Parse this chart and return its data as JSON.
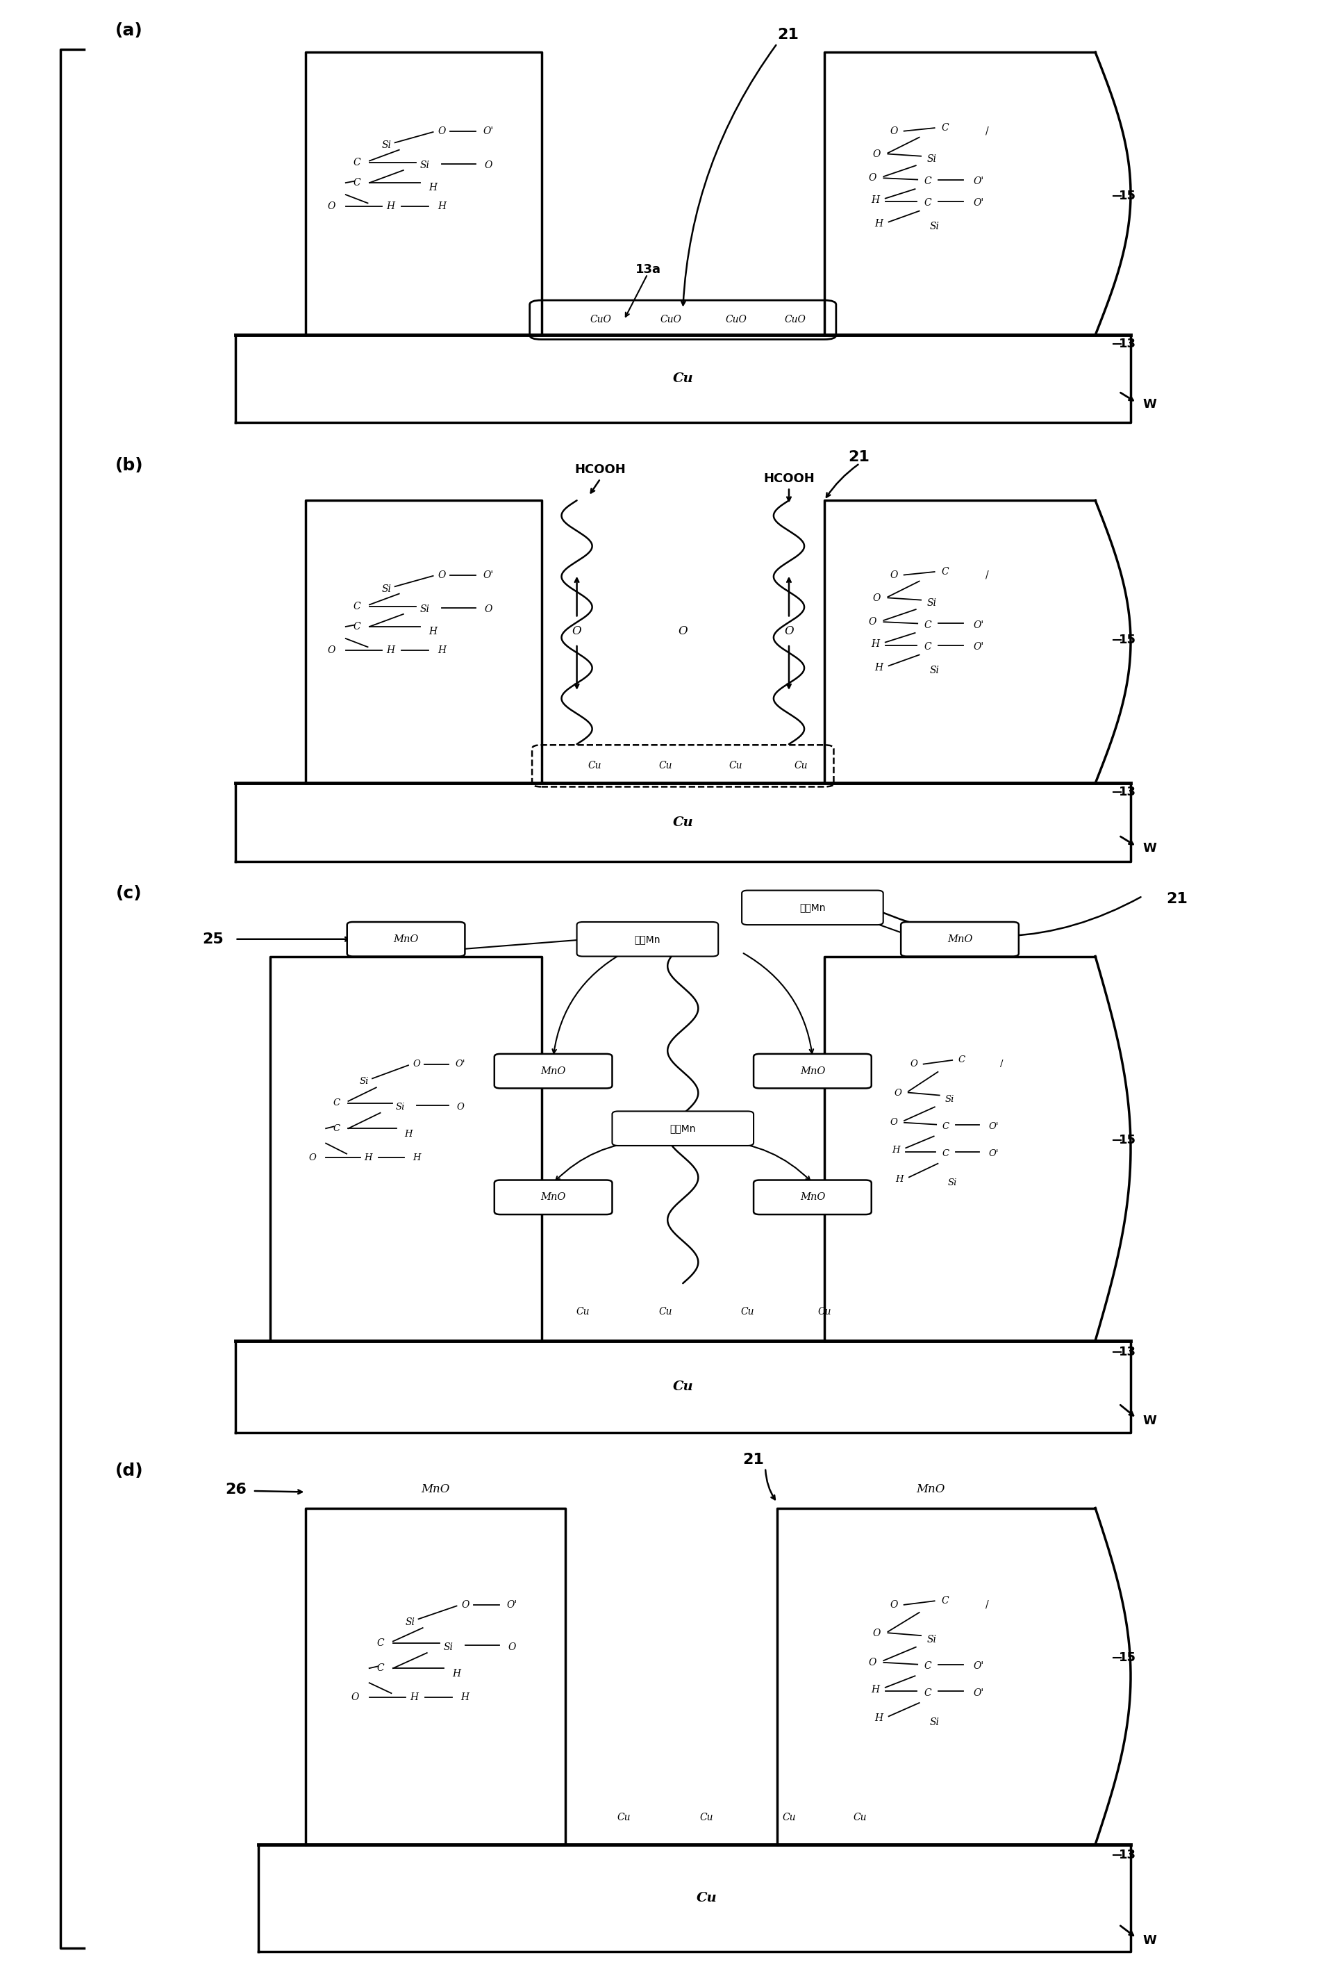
{
  "background_color": "#ffffff",
  "panel_labels": [
    "(a)",
    "(b)",
    "(c)",
    "(d)"
  ],
  "label_fontsize": 18,
  "ref_fontsize": 16,
  "chem_fontsize": 12,
  "cu_fontsize": 14,
  "hcooh_fontsize": 13,
  "mno_fontsize": 11
}
